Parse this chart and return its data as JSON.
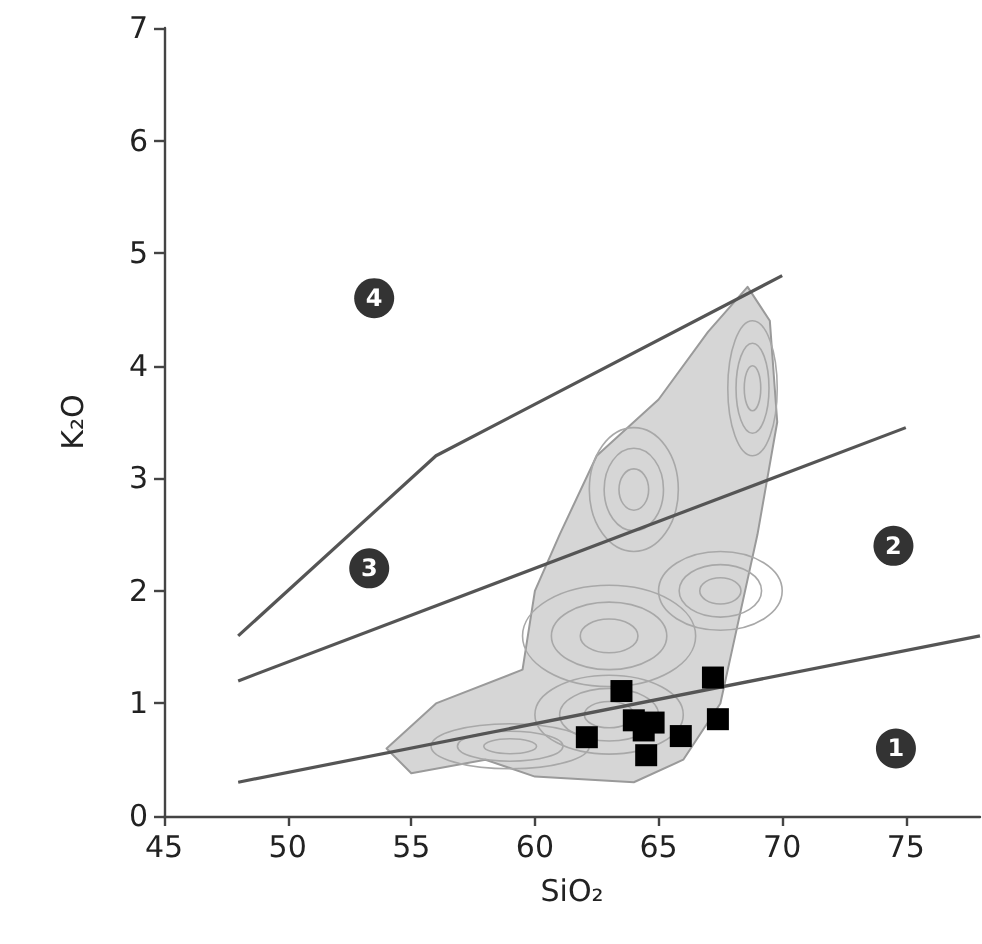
{
  "chart_data": {
    "type": "scatter",
    "xlabel": "SiO₂",
    "ylabel": "K₂O",
    "xlim": [
      45,
      78
    ],
    "xticks": [
      45,
      50,
      55,
      60,
      65,
      70,
      75
    ],
    "ylim": [
      0,
      7
    ],
    "yticks": [
      0,
      1,
      2,
      3,
      4,
      5,
      6,
      7
    ],
    "grid": false,
    "series": [
      {
        "marker": "square",
        "color": "#000000",
        "x": [
          62.1,
          63.5,
          67.2,
          67.4,
          65.9,
          64.5,
          64.0,
          64.8,
          64.4
        ],
        "values": [
          0.7,
          1.11,
          1.23,
          0.86,
          0.71,
          0.54,
          0.85,
          0.83,
          0.76
        ]
      },
      {
        "type": "line",
        "marker": "none",
        "color": "#555555",
        "x": [
          48,
          78
        ],
        "values": [
          0.3,
          1.6
        ]
      },
      {
        "type": "line",
        "marker": "none",
        "color": "#555555",
        "x": [
          48,
          75
        ],
        "values": [
          1.2,
          3.45
        ]
      },
      {
        "type": "line",
        "marker": "none",
        "color": "#555555",
        "x": [
          48,
          56,
          70
        ],
        "values": [
          1.6,
          3.2,
          4.8
        ]
      }
    ],
    "annotations": [
      {
        "text": "1",
        "x": 74.6,
        "y": 0.6
      },
      {
        "text": "2",
        "x": 74.5,
        "y": 2.4
      },
      {
        "text": "3",
        "x": 53.3,
        "y": 2.2
      },
      {
        "text": "4",
        "x": 53.5,
        "y": 4.6
      }
    ]
  }
}
